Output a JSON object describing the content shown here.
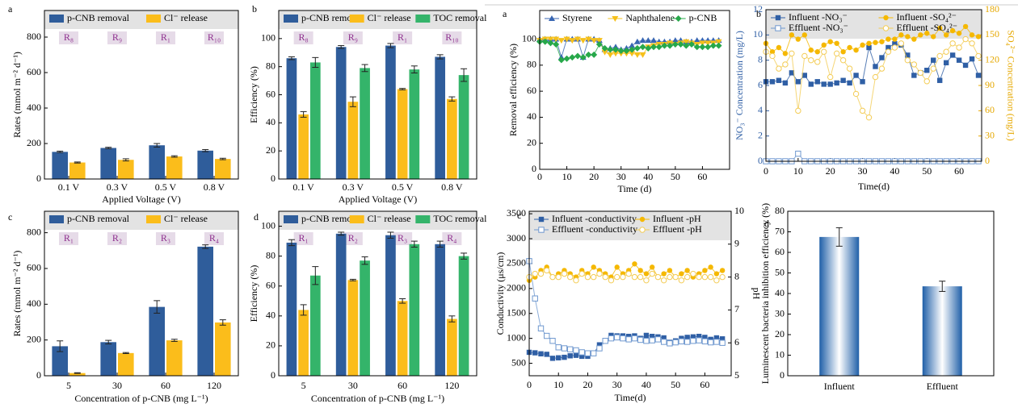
{
  "chart_data": [
    {
      "type": "bar",
      "panel_label": "a",
      "categories": [
        "0.1 V",
        "0.3 V",
        "0.5 V",
        "0.8 V"
      ],
      "category_notes": [
        "R₈",
        "R₉",
        "R₁",
        "R₁₀"
      ],
      "series": [
        {
          "name": "p-CNB removal",
          "color": "#2f5d9b",
          "values": [
            153,
            175,
            190,
            160
          ],
          "errors": [
            4,
            4,
            10,
            6
          ]
        },
        {
          "name": "Cl⁻ release",
          "color": "#fbbd1b",
          "values": [
            93,
            108,
            127,
            113
          ],
          "errors": [
            3,
            6,
            4,
            4
          ]
        }
      ],
      "ylim": [
        0,
        950
      ],
      "yticks": [
        0,
        200,
        400,
        600,
        800
      ],
      "ylabel": "Rates (mmol m⁻² d⁻¹)",
      "xlabel": "Applied Voltage (V)",
      "legend_band": true,
      "legend_rows": 1
    },
    {
      "type": "bar",
      "panel_label": "b",
      "categories": [
        "0.1 V",
        "0.3 V",
        "0.5 V",
        "0.8 V"
      ],
      "category_notes": [
        "R₈",
        "R₉",
        "R₁",
        "R₁₀"
      ],
      "series": [
        {
          "name": "p-CNB removal",
          "color": "#2f5d9b",
          "values": [
            86,
            94,
            95,
            87
          ],
          "errors": [
            1,
            1,
            1.5,
            1.5
          ]
        },
        {
          "name": "Cl⁻ release",
          "color": "#fbbd1b",
          "values": [
            46,
            55,
            64,
            57
          ],
          "errors": [
            2,
            3.5,
            0.5,
            1.5
          ]
        },
        {
          "name": "TOC removal",
          "color": "#34b46a",
          "values": [
            83,
            79,
            78,
            74
          ],
          "errors": [
            3.5,
            2.5,
            2.5,
            4.5
          ]
        }
      ],
      "ylim": [
        0,
        120
      ],
      "yticks": [
        0,
        20,
        40,
        60,
        80,
        100
      ],
      "ylabel": "Efficiency (%)",
      "xlabel": "Applied Voltage (V)",
      "legend_band": true,
      "legend_rows": 1
    },
    {
      "type": "bar",
      "panel_label": "c",
      "categories": [
        "5",
        "30",
        "60",
        "120"
      ],
      "category_notes": [
        "R₁",
        "R₂",
        "R₃",
        "R₄"
      ],
      "series": [
        {
          "name": "p-CNB removal",
          "color": "#2f5d9b",
          "values": [
            165,
            188,
            385,
            722
          ],
          "errors": [
            30,
            10,
            35,
            10
          ]
        },
        {
          "name": "Cl⁻ release",
          "color": "#fbbd1b",
          "values": [
            15,
            127,
            198,
            298
          ],
          "errors": [
            2,
            3,
            6,
            15
          ]
        }
      ],
      "ylim": [
        0,
        920
      ],
      "yticks": [
        0,
        200,
        400,
        600,
        800
      ],
      "ylabel": "Rates (mmol m⁻² d⁻¹)",
      "xlabel": "Concentration of p-CNB (mg L⁻¹)",
      "legend_band": true,
      "legend_rows": 1
    },
    {
      "type": "bar",
      "panel_label": "d",
      "categories": [
        "5",
        "30",
        "60",
        "120"
      ],
      "category_notes": [
        "R₁",
        "R₂",
        "R₃",
        "R₄"
      ],
      "series": [
        {
          "name": "p-CNB removal",
          "color": "#2f5d9b",
          "values": [
            89,
            95,
            94,
            88
          ],
          "errors": [
            2,
            1,
            2,
            2
          ]
        },
        {
          "name": "Cl⁻ release",
          "color": "#fbbd1b",
          "values": [
            44,
            64,
            50,
            38
          ],
          "errors": [
            3.5,
            0.5,
            1.5,
            2
          ]
        },
        {
          "name": "TOC removal",
          "color": "#34b46a",
          "values": [
            67,
            77,
            88,
            80
          ],
          "errors": [
            6,
            2.5,
            2,
            2
          ]
        }
      ],
      "ylim": [
        0,
        110
      ],
      "yticks": [
        0,
        20,
        40,
        60,
        80,
        100
      ],
      "ylabel": "Efficiency (%)",
      "xlabel": "Concentration of p-CNB (mg L⁻¹)",
      "legend_band": true,
      "legend_rows": 1
    },
    {
      "type": "line",
      "panel_label": "a",
      "x": [
        0,
        2,
        4,
        6,
        8,
        10,
        12,
        14,
        16,
        18,
        20,
        22,
        24,
        26,
        28,
        30,
        32,
        34,
        36,
        38,
        40,
        42,
        44,
        46,
        48,
        50,
        52,
        54,
        56,
        58,
        60,
        62,
        64,
        66
      ],
      "series": [
        {
          "name": "Styrene",
          "color": "#3866b2",
          "marker": "triangle",
          "values": [
            100,
            100,
            100,
            100,
            86,
            100,
            100,
            100,
            86,
            100,
            100,
            99,
            92,
            93,
            94,
            92,
            93,
            95,
            98,
            99,
            99,
            99,
            98,
            98,
            98,
            99,
            99,
            98,
            98,
            99,
            99,
            99,
            99,
            99
          ]
        },
        {
          "name": "Naphthalene",
          "color": "#f6c01a",
          "marker": "triangle-down",
          "values": [
            99,
            100,
            100,
            100,
            99,
            100,
            99,
            100,
            99,
            100,
            99,
            99,
            90,
            88,
            89,
            89,
            89,
            89,
            88,
            88,
            94,
            95,
            96,
            96,
            97,
            96,
            97,
            98,
            97,
            96,
            97,
            97,
            97,
            98
          ]
        },
        {
          "name": "p-CNB",
          "color": "#27a84a",
          "marker": "diamond",
          "values": [
            98,
            98,
            97,
            96,
            84,
            85,
            86,
            87,
            86,
            88,
            88,
            96,
            93,
            92,
            92,
            91,
            91,
            92,
            93,
            94,
            93,
            94,
            94,
            95,
            95,
            96,
            96,
            95,
            96,
            94,
            94,
            94,
            95,
            95
          ]
        }
      ],
      "xlim": [
        0,
        70
      ],
      "xticks": [
        0,
        10,
        20,
        30,
        40,
        50,
        60
      ],
      "ylim": [
        0,
        122
      ],
      "yticks": [
        0,
        20,
        40,
        60,
        80,
        100
      ],
      "ylabel": "Removal efficiency (%)",
      "xlabel": "Time (d)",
      "legend_band": false,
      "legend_rows": 1
    },
    {
      "type": "line",
      "panel_label": "b",
      "x": [
        0,
        2,
        4,
        6,
        8,
        10,
        12,
        14,
        16,
        18,
        20,
        22,
        24,
        26,
        28,
        30,
        32,
        34,
        36,
        38,
        40,
        42,
        44,
        46,
        48,
        50,
        52,
        54,
        56,
        58,
        60,
        62,
        64,
        66
      ],
      "series": [
        {
          "name": "Influent -NO₃⁻",
          "color": "#2f5fa5",
          "marker": "square",
          "values": [
            6.3,
            6.3,
            6.4,
            6.2,
            7.0,
            6.3,
            6.8,
            6.1,
            6.3,
            6.1,
            6.1,
            6.2,
            6.4,
            6.2,
            6.8,
            6.3,
            9.0,
            7.5,
            8.2,
            9.0,
            9.3,
            9.2,
            8.4,
            6.8,
            7.0,
            7.2,
            8.0,
            6.4,
            7.8,
            8.4,
            8.0,
            7.6,
            8.1,
            6.8
          ]
        },
        {
          "name": "Effluent -NO₃⁻",
          "color": "#6f98cf",
          "marker": "square-open",
          "values": [
            0,
            0,
            0,
            0,
            0,
            0.6,
            0,
            0,
            0,
            0,
            0,
            0,
            0,
            0,
            0,
            0,
            0,
            0,
            0,
            0,
            0,
            0,
            0,
            0,
            0,
            0,
            0,
            0,
            0,
            0,
            0,
            0,
            0,
            0
          ]
        },
        {
          "name": "Influent -SO₄²⁻",
          "color": "#f5b800",
          "marker": "circle",
          "axis": "y2",
          "values": [
            140,
            130,
            135,
            128,
            150,
            145,
            150,
            132,
            130,
            138,
            142,
            140,
            130,
            135,
            132,
            138,
            140,
            141,
            142,
            145,
            145,
            150,
            148,
            145,
            150,
            152,
            148,
            158,
            150,
            155,
            152,
            160,
            150,
            148
          ]
        },
        {
          "name": "Effluent -SO₄²⁻",
          "color": "#f3cc55",
          "marker": "circle-open",
          "axis": "y2",
          "values": [
            130,
            125,
            110,
            115,
            128,
            60,
            125,
            120,
            118,
            130,
            100,
            128,
            120,
            110,
            80,
            60,
            52,
            100,
            110,
            130,
            135,
            140,
            120,
            115,
            105,
            95,
            110,
            125,
            130,
            140,
            135,
            145,
            140,
            125
          ]
        }
      ],
      "xlim": [
        0,
        67
      ],
      "xticks": [
        0,
        10,
        20,
        30,
        40,
        50,
        60
      ],
      "ylim": [
        0,
        12
      ],
      "yticks": [
        0,
        2,
        4,
        6,
        8,
        10,
        12
      ],
      "y2lim": [
        0,
        180
      ],
      "y2ticks": [
        0,
        30,
        60,
        90,
        120,
        150,
        180
      ],
      "ycolor": "#2f5fa5",
      "y2color": "#e6a800",
      "ylabel": "NO₃⁻ Concentration (mg/L)",
      "y2label": "SO₄²⁻ Concentration (mg/L)",
      "xlabel": "Time(d)",
      "legend_band": true,
      "legend_rows": 2
    },
    {
      "type": "line",
      "panel_label": "c",
      "x": [
        0,
        2,
        4,
        6,
        8,
        10,
        12,
        14,
        16,
        18,
        20,
        22,
        24,
        26,
        28,
        30,
        32,
        34,
        36,
        38,
        40,
        42,
        44,
        46,
        48,
        50,
        52,
        54,
        56,
        58,
        60,
        62,
        64,
        66
      ],
      "series": [
        {
          "name": "Influent -conductivity",
          "color": "#2f5fa5",
          "marker": "square",
          "values": [
            720,
            710,
            690,
            680,
            600,
            610,
            620,
            650,
            660,
            640,
            640,
            700,
            870,
            950,
            1060,
            1050,
            1050,
            1040,
            1050,
            1000,
            1060,
            1040,
            1030,
            1010,
            920,
            950,
            1000,
            1020,
            1030,
            1040,
            1020,
            980,
            1010,
            990
          ]
        },
        {
          "name": "Effluent -conductivity",
          "color": "#6f98cf",
          "marker": "square-open",
          "values": [
            2550,
            1800,
            1200,
            1050,
            950,
            820,
            800,
            780,
            760,
            720,
            700,
            700,
            800,
            950,
            1000,
            1020,
            1000,
            980,
            1000,
            970,
            950,
            960,
            980,
            930,
            900,
            920,
            940,
            930,
            950,
            960,
            940,
            920,
            930,
            910
          ]
        },
        {
          "name": "Influent -pH",
          "color": "#f5b800",
          "marker": "circle",
          "axis": "y2",
          "values": [
            7.9,
            8.0,
            8.2,
            8.3,
            8.0,
            8.1,
            8.2,
            8.1,
            8.0,
            8.2,
            8.1,
            8.3,
            8.2,
            8.1,
            8.0,
            8.3,
            8.1,
            8.2,
            8.4,
            8.2,
            8.1,
            8.3,
            8.0,
            8.1,
            8.2,
            8.0,
            8.1,
            8.2,
            8.0,
            8.1,
            8.2,
            8.3,
            8.1,
            8.2
          ]
        },
        {
          "name": "Effluent -pH",
          "color": "#f3cc55",
          "marker": "circle-open",
          "axis": "y2",
          "values": [
            8.0,
            8.1,
            8.1,
            8.2,
            8.0,
            8.0,
            8.1,
            8.0,
            7.9,
            8.1,
            8.0,
            8.0,
            8.1,
            8.0,
            7.9,
            8.0,
            8.0,
            8.1,
            8.0,
            8.0,
            7.9,
            8.1,
            8.0,
            7.9,
            8.0,
            8.0,
            7.9,
            8.0,
            8.1,
            8.0,
            8.0,
            8.0,
            7.9,
            8.0
          ]
        }
      ],
      "xlim": [
        0,
        69
      ],
      "xticks": [
        0,
        10,
        20,
        30,
        40,
        50,
        60
      ],
      "ylim": [
        250,
        3550
      ],
      "yticks": [
        500,
        1000,
        1500,
        2000,
        2500,
        3000,
        3500
      ],
      "y2lim": [
        5,
        10
      ],
      "y2ticks": [
        5,
        6,
        7,
        8,
        9,
        10
      ],
      "ylabel": "Conductivity (μs/cm)",
      "y2label": "pH",
      "xlabel": "Time(d)",
      "legend_band": true,
      "legend_rows": 2
    },
    {
      "type": "bar",
      "panel_label": "d",
      "categories": [
        "Influent",
        "Effluent"
      ],
      "values": [
        67.5,
        43.5
      ],
      "errors": [
        4.5,
        2.5
      ],
      "color": "#1f5fa8",
      "gradient": true,
      "ylim": [
        0,
        80
      ],
      "yticks": [
        0,
        10,
        20,
        30,
        40,
        50,
        60,
        70,
        80
      ],
      "ylabel": "Luminescent bacteria inhibition efficiency (%)",
      "legend_band": false
    }
  ]
}
